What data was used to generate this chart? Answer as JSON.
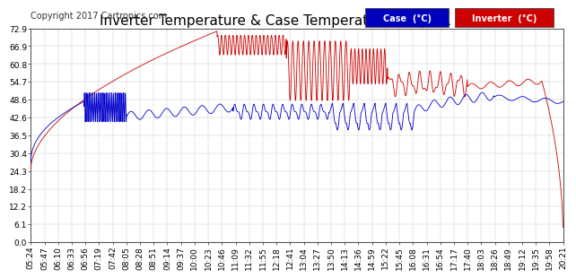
{
  "title": "Inverter Temperature & Case Temperature Sat Jul 1 20:36",
  "copyright": "Copyright 2017 Cartronics.com",
  "legend_case_label": "Case  (°C)",
  "legend_inverter_label": "Inverter  (°C)",
  "case_color": "#0000cc",
  "inverter_color": "#cc0000",
  "legend_case_bg": "#0000bb",
  "legend_inverter_bg": "#cc0000",
  "background_color": "#ffffff",
  "grid_color": "#aaaaaa",
  "ylim": [
    0.0,
    72.9
  ],
  "yticks": [
    0.0,
    6.1,
    12.2,
    18.2,
    24.3,
    30.4,
    36.5,
    42.6,
    48.6,
    54.7,
    60.8,
    66.9,
    72.9
  ],
  "title_fontsize": 11,
  "copyright_fontsize": 7,
  "axis_fontsize": 6.5,
  "time_labels": [
    "05:24",
    "05:47",
    "06:10",
    "06:33",
    "06:56",
    "07:19",
    "07:42",
    "08:05",
    "08:28",
    "08:51",
    "09:14",
    "09:37",
    "10:00",
    "10:23",
    "10:46",
    "11:09",
    "11:32",
    "11:55",
    "12:18",
    "12:41",
    "13:04",
    "13:27",
    "13:50",
    "14:13",
    "14:36",
    "14:59",
    "15:22",
    "15:45",
    "16:08",
    "16:31",
    "16:54",
    "17:17",
    "17:40",
    "18:03",
    "18:26",
    "18:49",
    "19:12",
    "19:35",
    "19:58",
    "20:21"
  ]
}
